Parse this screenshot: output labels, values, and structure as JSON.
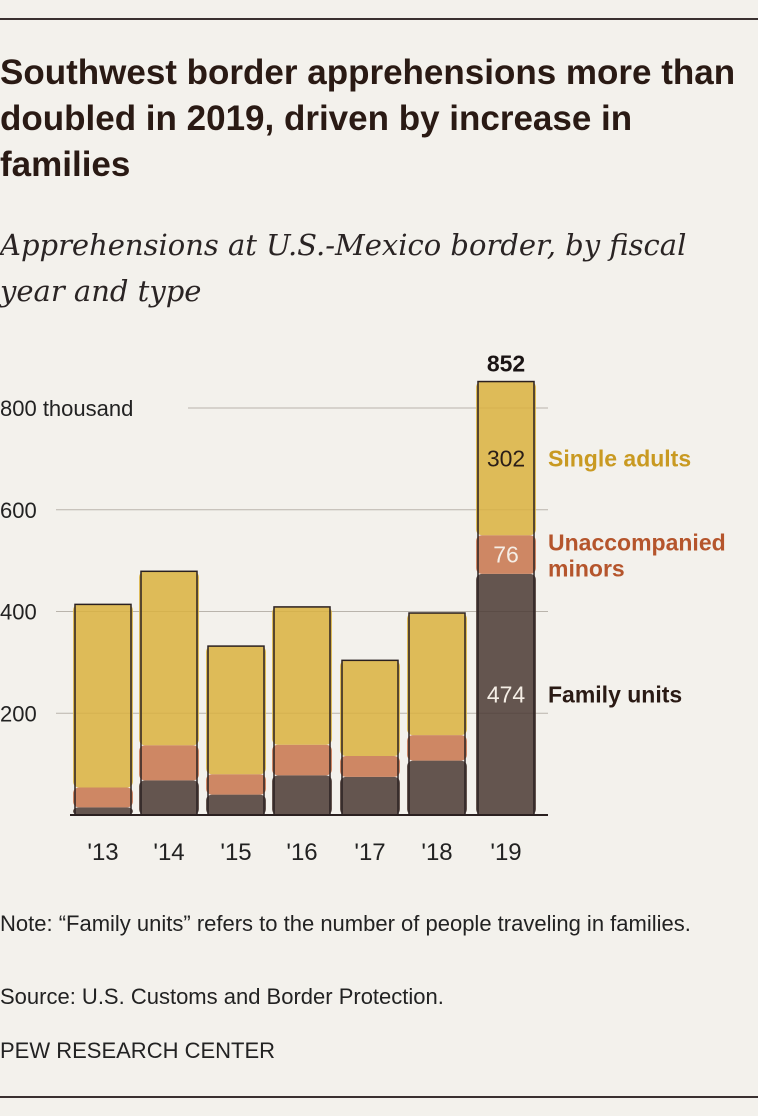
{
  "title": "Southwest border apprehensions more than doubled in 2019, driven by increase in families",
  "subtitle": "Apprehensions at U.S.-Mexico border, by fiscal year and type",
  "chart_data": {
    "type": "bar",
    "stacked": true,
    "categories": [
      "'13",
      "'14",
      "'15",
      "'16",
      "'17",
      "'18",
      "'19"
    ],
    "series": [
      {
        "name": "Family units",
        "values": [
          15,
          68,
          40,
          78,
          75,
          107,
          474
        ],
        "color": "#4a3a34"
      },
      {
        "name": "Unaccompanied minors",
        "values": [
          39,
          69,
          40,
          60,
          41,
          50,
          76
        ],
        "color": "#c7744c"
      },
      {
        "name": "Single adults",
        "values": [
          360,
          342,
          252,
          271,
          188,
          240,
          302
        ],
        "color": "#d9b23e"
      }
    ],
    "y_ticks": [
      {
        "value": 200,
        "label": "200"
      },
      {
        "value": 400,
        "label": "400"
      },
      {
        "value": 600,
        "label": "600"
      },
      {
        "value": 800,
        "label": "800 thousand"
      }
    ],
    "ylim": [
      0,
      860
    ],
    "total_label": {
      "category": "'19",
      "value": "852"
    },
    "data_labels": [
      {
        "series": "Single adults",
        "value": "302"
      },
      {
        "series": "Unaccompanied minors",
        "value": "76"
      },
      {
        "series": "Family units",
        "value": "474"
      }
    ],
    "legend": [
      "Single adults",
      "Unaccompanied minors",
      "Family units"
    ],
    "legend_placement": "right-of-last-bar",
    "grid": true
  },
  "note": "Note: “Family units” refers to the number of people traveling in families.",
  "source": "Source: U.S. Customs and Border Protection.",
  "brand": "PEW RESEARCH CENTER"
}
